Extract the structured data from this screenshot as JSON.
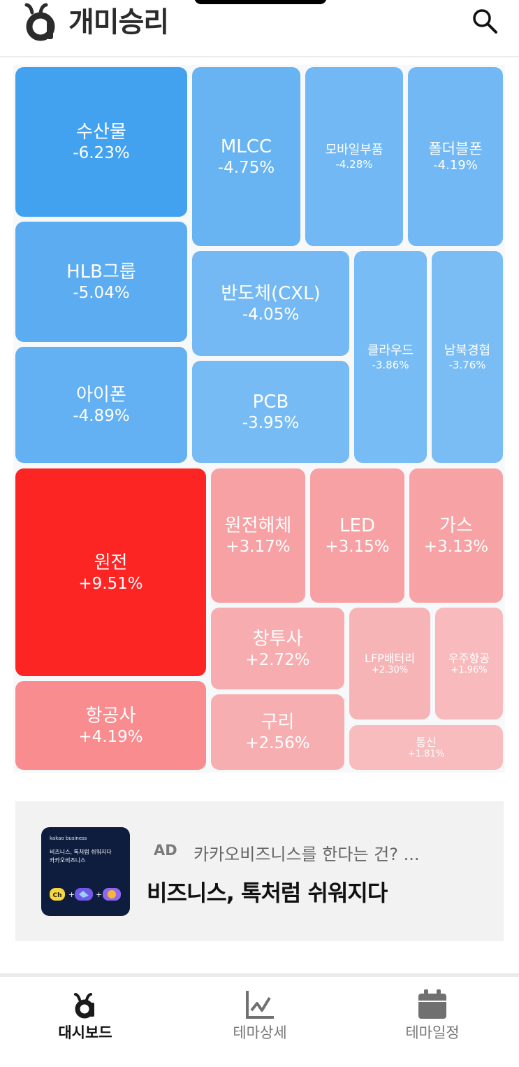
{
  "app": {
    "title": "개미승리"
  },
  "header": {
    "search_icon": "search-icon"
  },
  "heatmap": {
    "tiles": [
      {
        "name": "수산물",
        "change": "-6.23%",
        "color": "#42a2f0"
      },
      {
        "name": "MLCC",
        "change": "-4.75%",
        "color": "#68b3f2"
      },
      {
        "name": "모바일부품",
        "change": "-4.28%",
        "color": "#71b8f4"
      },
      {
        "name": "폴더블폰",
        "change": "-4.19%",
        "color": "#72b8f4"
      },
      {
        "name": "HLB그룹",
        "change": "-5.04%",
        "color": "#5cacf2"
      },
      {
        "name": "반도체(CXL)",
        "change": "-4.05%",
        "color": "#74b9f4"
      },
      {
        "name": "클라우드",
        "change": "-3.86%",
        "color": "#77bcf4"
      },
      {
        "name": "남북경협",
        "change": "-3.76%",
        "color": "#7abdf5"
      },
      {
        "name": "아이폰",
        "change": "-4.89%",
        "color": "#63b0f2"
      },
      {
        "name": "PCB",
        "change": "-3.95%",
        "color": "#76bbf4"
      },
      {
        "name": "원전",
        "change": "+9.51%",
        "color": "#fd2524"
      },
      {
        "name": "원전해체",
        "change": "+3.17%",
        "color": "#f7a1a4"
      },
      {
        "name": "LED",
        "change": "+3.15%",
        "color": "#f7a1a4"
      },
      {
        "name": "가스",
        "change": "+3.13%",
        "color": "#f7a2a5"
      },
      {
        "name": "창투사",
        "change": "+2.72%",
        "color": "#f7acaf"
      },
      {
        "name": "LFP배터리",
        "change": "+2.30%",
        "color": "#f7b4b6"
      },
      {
        "name": "우주항공",
        "change": "+1.96%",
        "color": "#f8babc"
      },
      {
        "name": "항공사",
        "change": "+4.19%",
        "color": "#f88c8f"
      },
      {
        "name": "구리",
        "change": "+2.56%",
        "color": "#f7aeb1"
      },
      {
        "name": "통신",
        "change": "+1.81%",
        "color": "#f8bcbe"
      }
    ]
  },
  "ad": {
    "thumb_brand": "kakao business",
    "thumb_line1": "비즈니스, 톡처럼 쉬워지다",
    "thumb_line2": "카카오비즈니스",
    "tag": "AD",
    "subtitle": "카카오비즈니스를 한다는 건? ...",
    "title": "비즈니스, 톡처럼 쉬워지다"
  },
  "bottom_nav": {
    "items": [
      {
        "label": "대시보드",
        "icon": "ant-logo-icon",
        "active": true
      },
      {
        "label": "테마상세",
        "icon": "line-chart-icon",
        "active": false
      },
      {
        "label": "테마일정",
        "icon": "calendar-icon",
        "active": false
      }
    ]
  }
}
